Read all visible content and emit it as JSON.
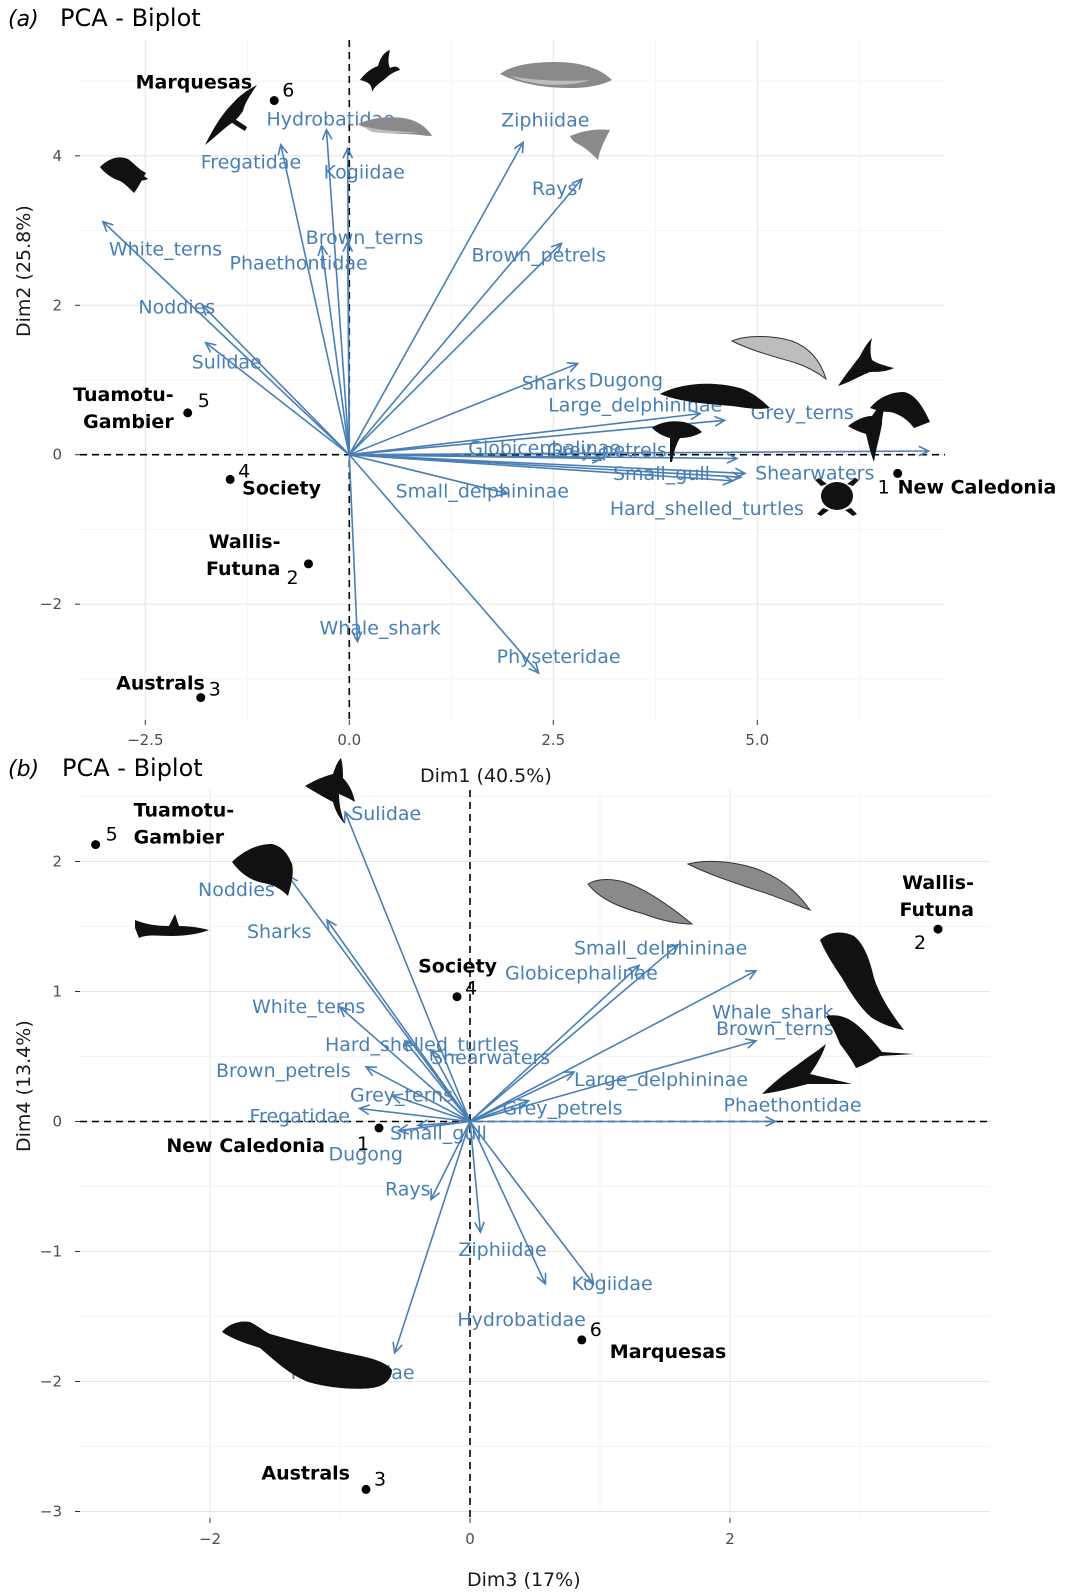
{
  "figure": {
    "panels": [
      {
        "letter": "(a)",
        "title": "PCA - Biplot",
        "icons": [
          "frigatebird-icon",
          "storm-petrel-icon",
          "white-tern-icon",
          "beaked-whale-icon",
          "pygmy-sperm-whale-icon",
          "manta-ray-icon",
          "spotted-dolphin-icon",
          "dugong-icon",
          "tern-icon",
          "shearwater-icon",
          "petrel-icon",
          "grey-petrel-icon",
          "noddy-icon",
          "sea-turtle-icon"
        ]
      },
      {
        "letter": "(b)",
        "title": "PCA - Biplot",
        "icons": [
          "booby-icon",
          "noddy-icon",
          "shark-icon",
          "pilot-whale-icon",
          "spinner-dolphin-icon",
          "whale-shark-icon",
          "tern-icon",
          "tropicbird-icon",
          "sperm-whale-icon"
        ]
      }
    ],
    "colors": {
      "arrows": "#4a7fb5",
      "sites": "#000000",
      "grid": "#e6e6e6",
      "zero_lines": "#000000"
    }
  },
  "chart_data": [
    {
      "type": "scatter",
      "subtype": "pca-biplot",
      "title": "PCA - Biplot",
      "xlabel": "Dim1 (40.5%)",
      "ylabel": "Dim2 (25.8%)",
      "xlim": [
        -3.3,
        7.3
      ],
      "ylim": [
        -3.55,
        5.55
      ],
      "xticks": [
        -2.5,
        0.0,
        2.5,
        5.0
      ],
      "xtick_labels": [
        "−2.5",
        "0.0",
        "2.5",
        "5.0"
      ],
      "yticks": [
        -2,
        0,
        2,
        4
      ],
      "ytick_labels": [
        "−2",
        "0",
        "2",
        "4"
      ],
      "grid": true,
      "sites": [
        {
          "num": "1",
          "name": "New Caledonia",
          "x": 6.72,
          "y": -0.25
        },
        {
          "num": "2",
          "name": "Wallis-Futuna",
          "x": -0.5,
          "y": -1.46
        },
        {
          "num": "3",
          "name": "Australs",
          "x": -1.82,
          "y": -3.25
        },
        {
          "num": "4",
          "name": "Society",
          "x": -1.46,
          "y": -0.33
        },
        {
          "num": "5",
          "name": "Tuamotu-Gambier",
          "x": -1.98,
          "y": 0.56
        },
        {
          "num": "6",
          "name": "Marquesas",
          "x": -0.92,
          "y": 4.74
        }
      ],
      "variables": [
        {
          "name": "Hydrobatidae",
          "x": -0.28,
          "y": 4.35
        },
        {
          "name": "Fregatidae",
          "x": -0.84,
          "y": 4.15
        },
        {
          "name": "Kogiidae",
          "x": -0.02,
          "y": 4.1
        },
        {
          "name": "Ziphiidae",
          "x": 2.13,
          "y": 4.18
        },
        {
          "name": "Rays",
          "x": 2.85,
          "y": 3.69
        },
        {
          "name": "White_terns",
          "x": -3.02,
          "y": 3.12
        },
        {
          "name": "Brown_terns",
          "x": -0.02,
          "y": 2.85
        },
        {
          "name": "Phaethontidae",
          "x": -0.34,
          "y": 2.8
        },
        {
          "name": "Brown_petrels",
          "x": 2.6,
          "y": 2.83
        },
        {
          "name": "Noddies",
          "x": -1.8,
          "y": 2.0
        },
        {
          "name": "Sulidae",
          "x": -1.76,
          "y": 1.5
        },
        {
          "name": "Sharks",
          "x": 2.8,
          "y": 1.22
        },
        {
          "name": "Large_delphininae",
          "x": 4.3,
          "y": 0.55
        },
        {
          "name": "Dugong",
          "x": 4.6,
          "y": 0.46
        },
        {
          "name": "Grey_terns",
          "x": 7.1,
          "y": 0.05
        },
        {
          "name": "Grey_petrels",
          "x": 4.75,
          "y": -0.05
        },
        {
          "name": "Globicephalinae",
          "x": 3.1,
          "y": -0.05
        },
        {
          "name": "Shearwaters",
          "x": 4.85,
          "y": -0.25
        },
        {
          "name": "Small_gull",
          "x": 4.8,
          "y": -0.3
        },
        {
          "name": "Hard_shelled_turtles",
          "x": 4.7,
          "y": -0.35
        },
        {
          "name": "Small_delphininae",
          "x": 1.94,
          "y": -0.52
        },
        {
          "name": "Whale_shark",
          "x": 0.1,
          "y": -2.5
        },
        {
          "name": "Physeteridae",
          "x": 2.32,
          "y": -2.92
        }
      ]
    },
    {
      "type": "scatter",
      "subtype": "pca-biplot",
      "title": "PCA - Biplot",
      "xlabel": "Dim3 (17%)",
      "ylabel": "Dim4 (13.4%)",
      "xlim": [
        -3.0,
        4.0
      ],
      "ylim": [
        -3.05,
        2.55
      ],
      "xticks": [
        -2,
        0,
        2
      ],
      "xtick_labels": [
        "−2",
        "0",
        "2"
      ],
      "yticks": [
        -3,
        -2,
        -1,
        0,
        1,
        2
      ],
      "ytick_labels": [
        "−3",
        "−2",
        "−1",
        "0",
        "1",
        "2"
      ],
      "grid": true,
      "sites": [
        {
          "num": "1",
          "name": "New Caledonia",
          "x": -0.7,
          "y": -0.05
        },
        {
          "num": "2",
          "name": "Wallis-Futuna",
          "x": 3.6,
          "y": 1.48
        },
        {
          "num": "3",
          "name": "Australs",
          "x": -0.8,
          "y": -2.83
        },
        {
          "num": "4",
          "name": "Society",
          "x": -0.1,
          "y": 0.96
        },
        {
          "num": "5",
          "name": "Tuamotu-Gambier",
          "x": -2.88,
          "y": 2.13
        },
        {
          "num": "6",
          "name": "Marquesas",
          "x": 0.86,
          "y": -1.68
        }
      ],
      "variables": [
        {
          "name": "Sulidae",
          "x": -0.96,
          "y": 2.38
        },
        {
          "name": "Noddies",
          "x": -1.4,
          "y": 1.89
        },
        {
          "name": "Sharks",
          "x": -1.1,
          "y": 1.55
        },
        {
          "name": "Small_delphininae",
          "x": 1.6,
          "y": 1.36
        },
        {
          "name": "Globicephalinae",
          "x": 1.3,
          "y": 1.2
        },
        {
          "name": "Whale_shark",
          "x": 2.2,
          "y": 1.16
        },
        {
          "name": "White_terns",
          "x": -1.0,
          "y": 0.88
        },
        {
          "name": "Hard_shelled_turtles",
          "x": -0.5,
          "y": 0.62
        },
        {
          "name": "Shearwaters",
          "x": -0.3,
          "y": 0.55
        },
        {
          "name": "Brown_terns",
          "x": 2.2,
          "y": 0.62
        },
        {
          "name": "Large_delphininae",
          "x": 0.8,
          "y": 0.38
        },
        {
          "name": "Brown_petrels",
          "x": -0.8,
          "y": 0.42
        },
        {
          "name": "Grey_terns",
          "x": -0.6,
          "y": 0.2
        },
        {
          "name": "Grey_petrels",
          "x": 0.45,
          "y": 0.16
        },
        {
          "name": "Phaethontidae",
          "x": 2.35,
          "y": 0.0
        },
        {
          "name": "Fregatidae",
          "x": -0.85,
          "y": 0.1
        },
        {
          "name": "Small_gull",
          "x": -0.4,
          "y": -0.03
        },
        {
          "name": "Dugong",
          "x": -0.55,
          "y": -0.07
        },
        {
          "name": "Rays",
          "x": -0.3,
          "y": -0.6
        },
        {
          "name": "Ziphiidae",
          "x": 0.08,
          "y": -0.85
        },
        {
          "name": "Hydrobatidae",
          "x": 0.58,
          "y": -1.25
        },
        {
          "name": "Kogiidae",
          "x": 0.95,
          "y": -1.25
        },
        {
          "name": "Physeteridae",
          "x": -0.58,
          "y": -1.78
        }
      ]
    }
  ]
}
